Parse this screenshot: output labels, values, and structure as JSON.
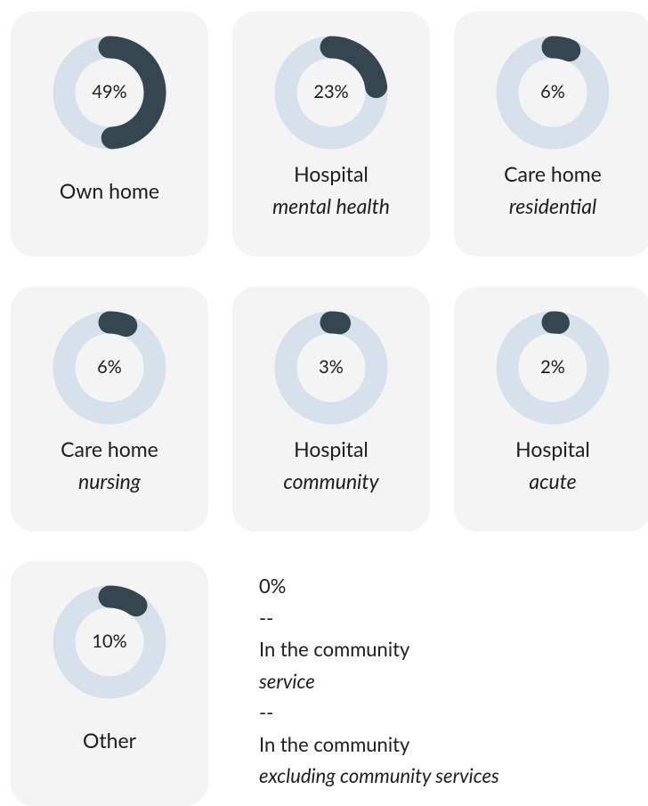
{
  "cards": [
    {
      "value": 49,
      "value_label": "49%",
      "label": "Own home"
    },
    {
      "value": 23,
      "value_label": "23%",
      "label": "Hospital",
      "sublabel": "mental health"
    },
    {
      "value": 6,
      "value_label": "6%",
      "label": "Care home",
      "sublabel": "residential"
    },
    {
      "value": 6,
      "value_label": "6%",
      "label": "Care home",
      "sublabel": "nursing"
    },
    {
      "value": 3,
      "value_label": "3%",
      "label": "Hospital",
      "sublabel": "community"
    },
    {
      "value": 2,
      "value_label": "2%",
      "label": "Hospital",
      "sublabel": "acute"
    },
    {
      "value": 10,
      "value_label": "10%",
      "label": "Other"
    }
  ],
  "note": {
    "lines": [
      "0%",
      "--",
      "In the community",
      "service",
      "--",
      "In the community",
      "excluding community services"
    ]
  },
  "colors": {
    "track": "#d7e1eb",
    "arc": "#364651"
  }
}
